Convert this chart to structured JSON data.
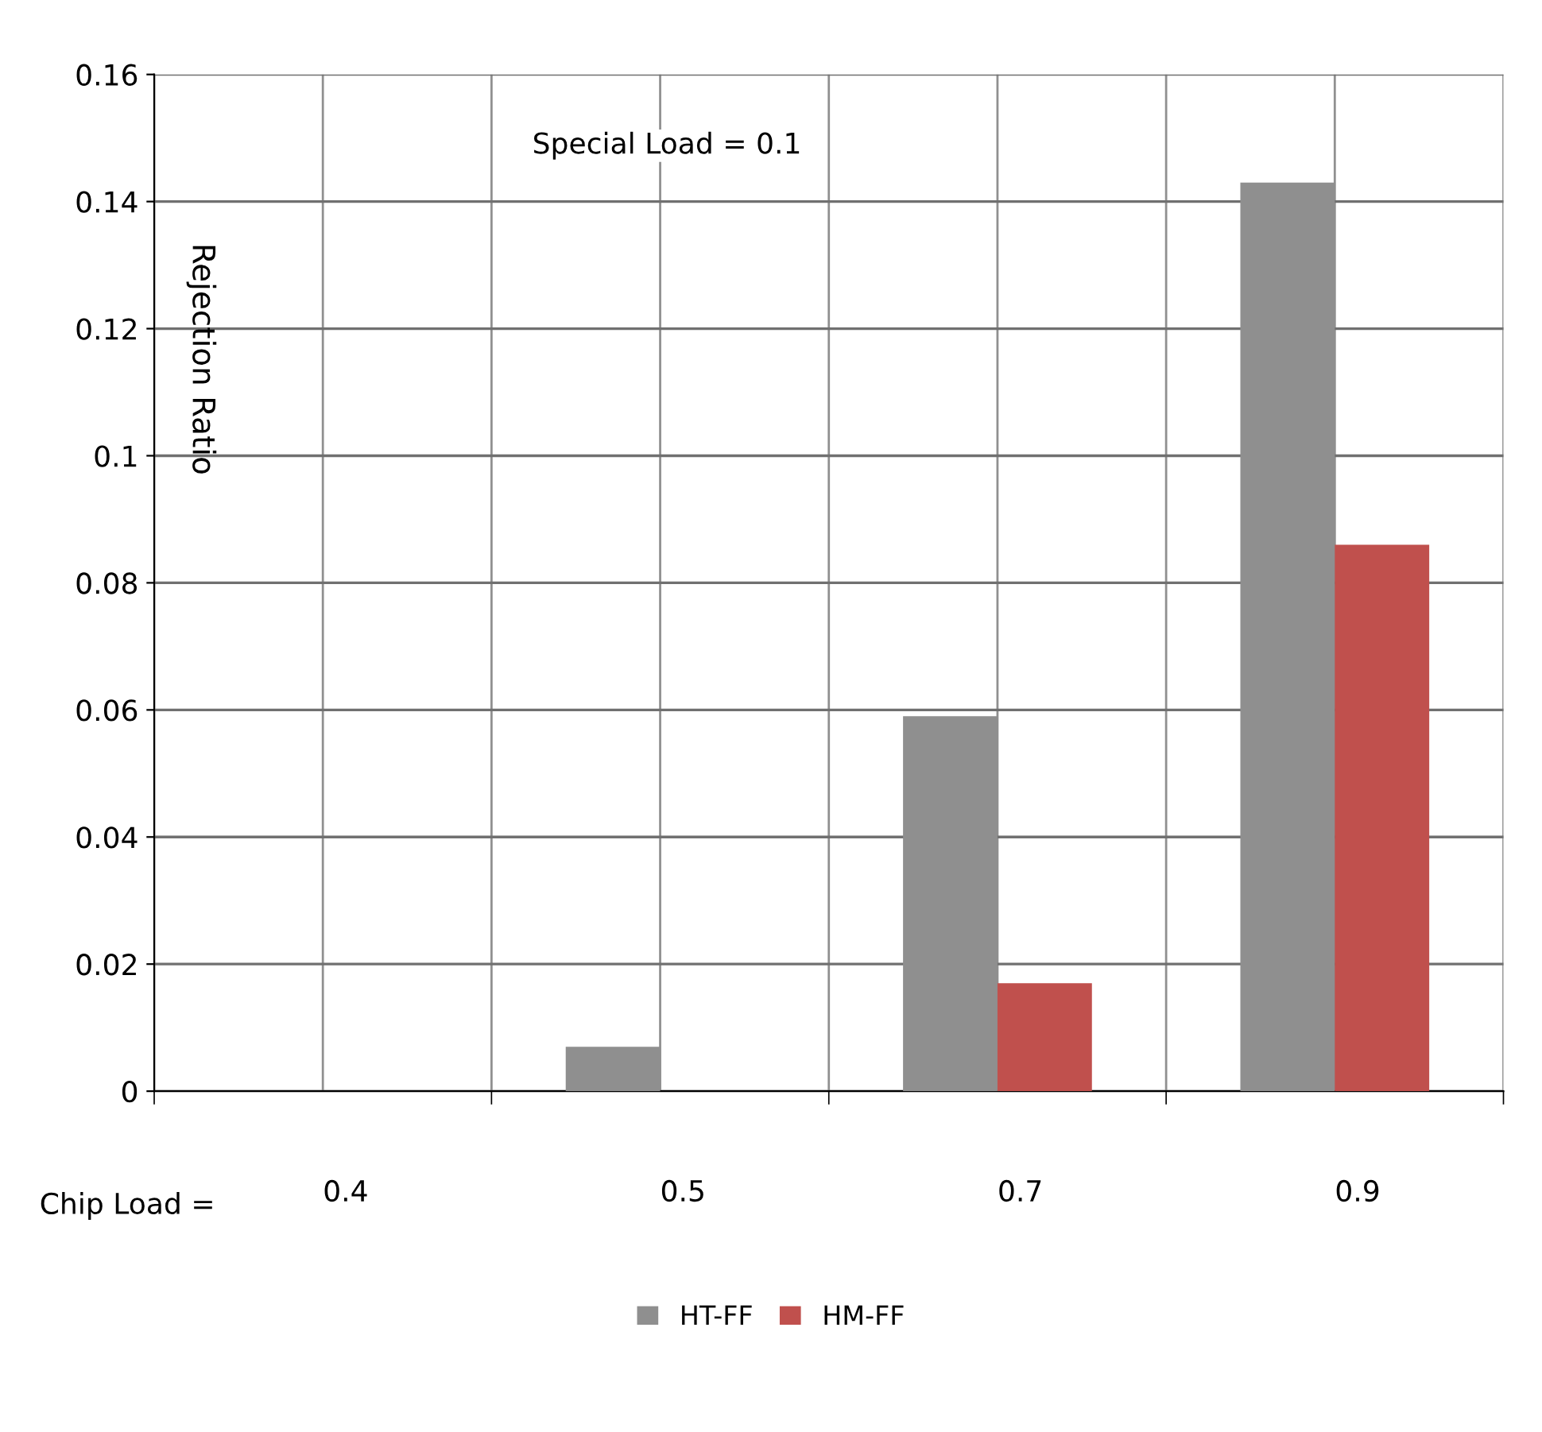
{
  "chart_data": {
    "type": "bar",
    "xlabel": "Chip Load =",
    "ylabel": "Rejection Ratio",
    "annotations": [
      "Special Load = 0.1"
    ],
    "categories": [
      "0.4",
      "0.5",
      "0.7",
      "0.9"
    ],
    "series": [
      {
        "name": "HT-FF",
        "color": "#8f8f8f",
        "values": [
          0,
          0.007,
          0.059,
          0.143
        ]
      },
      {
        "name": "HM-FF",
        "color": "#c0504d",
        "values": [
          0,
          0,
          0.017,
          0.086
        ]
      }
    ],
    "ylim": [
      0,
      0.16
    ],
    "yticks": [
      0,
      0.02,
      0.04,
      0.06,
      0.08,
      0.1,
      0.12,
      0.14,
      0.16
    ],
    "grid": true,
    "legend": "bottom"
  }
}
